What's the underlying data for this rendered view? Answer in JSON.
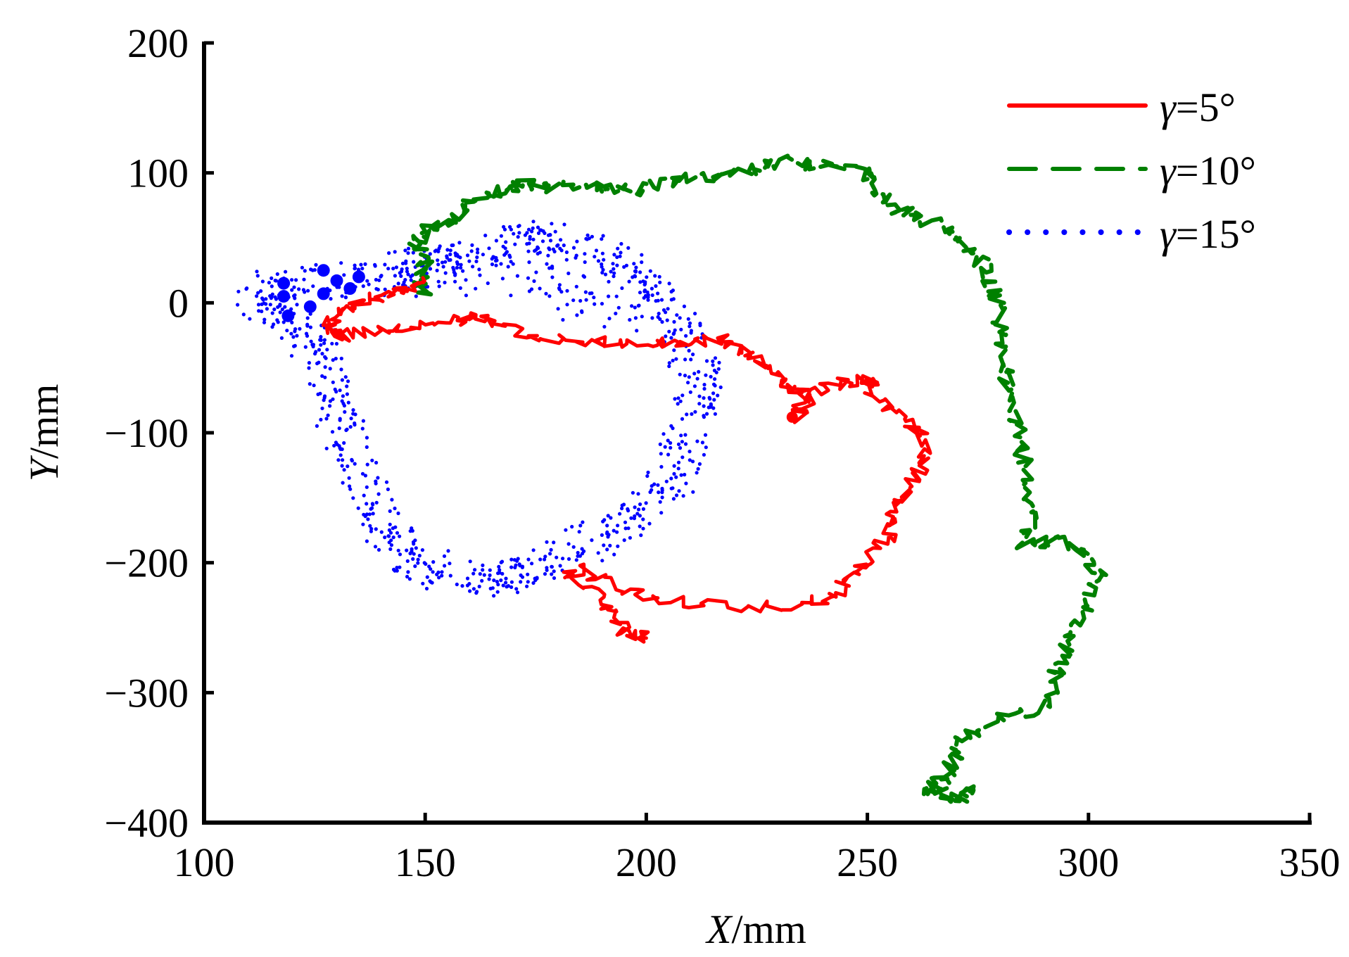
{
  "chart_data": {
    "type": "line",
    "title": "",
    "xlabel": "X/mm",
    "xlabel_var": "X",
    "xlabel_unit": "/mm",
    "ylabel": "Y/mm",
    "ylabel_var": "Y",
    "ylabel_unit": "/mm",
    "xlim": [
      100,
      350
    ],
    "ylim": [
      -400,
      200
    ],
    "xticks": [
      100,
      150,
      200,
      250,
      300,
      350
    ],
    "yticks": [
      200,
      100,
      0,
      -100,
      -200,
      -300,
      -400
    ],
    "xtick_labels": [
      "100",
      "150",
      "200",
      "250",
      "300",
      "350"
    ],
    "ytick_labels": [
      "200",
      "100",
      "0",
      "−100",
      "−200",
      "−300",
      "−400"
    ],
    "grid": false,
    "legend_position": "top-right",
    "series": [
      {
        "name": "γ=5°",
        "legend_var": "γ",
        "legend_value": "=5°",
        "color": "#ff0000",
        "style": "solid",
        "points": [
          [
            150,
            20
          ],
          [
            146,
            10
          ],
          [
            140,
            5
          ],
          [
            134,
            0
          ],
          [
            130,
            -8
          ],
          [
            128,
            -20
          ],
          [
            131,
            -26
          ],
          [
            140,
            -20
          ],
          [
            150,
            -17
          ],
          [
            158,
            -13
          ],
          [
            162,
            -10
          ],
          [
            168,
            -20
          ],
          [
            178,
            -28
          ],
          [
            190,
            -30
          ],
          [
            200,
            -30
          ],
          [
            210,
            -30
          ],
          [
            218,
            -29
          ],
          [
            222,
            -38
          ],
          [
            228,
            -52
          ],
          [
            232,
            -62
          ],
          [
            236,
            -70
          ],
          [
            234,
            -88
          ],
          [
            238,
            -70
          ],
          [
            244,
            -62
          ],
          [
            252,
            -58
          ],
          [
            250,
            -68
          ],
          [
            257,
            -85
          ],
          [
            262,
            -100
          ],
          [
            263,
            -122
          ],
          [
            260,
            -140
          ],
          [
            256,
            -160
          ],
          [
            255,
            -178
          ],
          [
            250,
            -197
          ],
          [
            246,
            -212
          ],
          [
            243,
            -225
          ],
          [
            236,
            -232
          ],
          [
            222,
            -235
          ],
          [
            205,
            -230
          ],
          [
            195,
            -220
          ],
          [
            185,
            -205
          ],
          [
            182,
            -210
          ],
          [
            190,
            -225
          ],
          [
            193,
            -245
          ],
          [
            196,
            -255
          ],
          [
            200,
            -258
          ]
        ],
        "end_marker": [
          233,
          -88
        ]
      },
      {
        "name": "γ=10°",
        "legend_var": "γ",
        "legend_value": "=10°",
        "color": "#008000",
        "style": "dashed",
        "points": [
          [
            150,
            5
          ],
          [
            148,
            20
          ],
          [
            150,
            30
          ],
          [
            148,
            45
          ],
          [
            151,
            55
          ],
          [
            155,
            60
          ],
          [
            160,
            75
          ],
          [
            166,
            85
          ],
          [
            172,
            90
          ],
          [
            180,
            90
          ],
          [
            190,
            88
          ],
          [
            195,
            86
          ],
          [
            205,
            92
          ],
          [
            215,
            98
          ],
          [
            225,
            103
          ],
          [
            232,
            110
          ],
          [
            240,
            105
          ],
          [
            250,
            100
          ],
          [
            253,
            85
          ],
          [
            258,
            70
          ],
          [
            265,
            60
          ],
          [
            272,
            45
          ],
          [
            276,
            30
          ],
          [
            279,
            5
          ],
          [
            280,
            -20
          ],
          [
            281,
            -50
          ],
          [
            283,
            -80
          ],
          [
            285,
            -110
          ],
          [
            286,
            -140
          ],
          [
            287,
            -165
          ],
          [
            285,
            -185
          ],
          [
            292,
            -183
          ],
          [
            298,
            -188
          ],
          [
            302,
            -205
          ],
          [
            300,
            -230
          ],
          [
            296,
            -255
          ],
          [
            293,
            -285
          ],
          [
            290,
            -310
          ],
          [
            280,
            -320
          ],
          [
            272,
            -335
          ],
          [
            270,
            -350
          ],
          [
            268,
            -368
          ],
          [
            262,
            -375
          ],
          [
            270,
            -380
          ],
          [
            274,
            -375
          ]
        ]
      },
      {
        "name": "γ=15°",
        "legend_var": "γ",
        "legend_value": "=15°",
        "color": "#0000ff",
        "style": "dotted",
        "ring_waypoints": [
          [
            112,
            10
          ],
          [
            125,
            15
          ],
          [
            140,
            20
          ],
          [
            155,
            30
          ],
          [
            165,
            40
          ],
          [
            175,
            50
          ],
          [
            190,
            40
          ],
          [
            200,
            15
          ],
          [
            208,
            -20
          ],
          [
            212,
            -60
          ],
          [
            210,
            -100
          ],
          [
            205,
            -140
          ],
          [
            195,
            -170
          ],
          [
            182,
            -195
          ],
          [
            170,
            -210
          ],
          [
            160,
            -215
          ],
          [
            148,
            -200
          ],
          [
            140,
            -170
          ],
          [
            135,
            -130
          ],
          [
            130,
            -80
          ],
          [
            127,
            -40
          ],
          [
            120,
            -10
          ],
          [
            112,
            0
          ]
        ],
        "large_markers": [
          [
            118,
            15
          ],
          [
            118,
            5
          ],
          [
            119,
            -10
          ],
          [
            124,
            -3
          ],
          [
            127,
            7
          ],
          [
            127,
            25
          ],
          [
            130,
            17
          ],
          [
            133,
            11
          ],
          [
            135,
            20
          ]
        ]
      }
    ]
  }
}
